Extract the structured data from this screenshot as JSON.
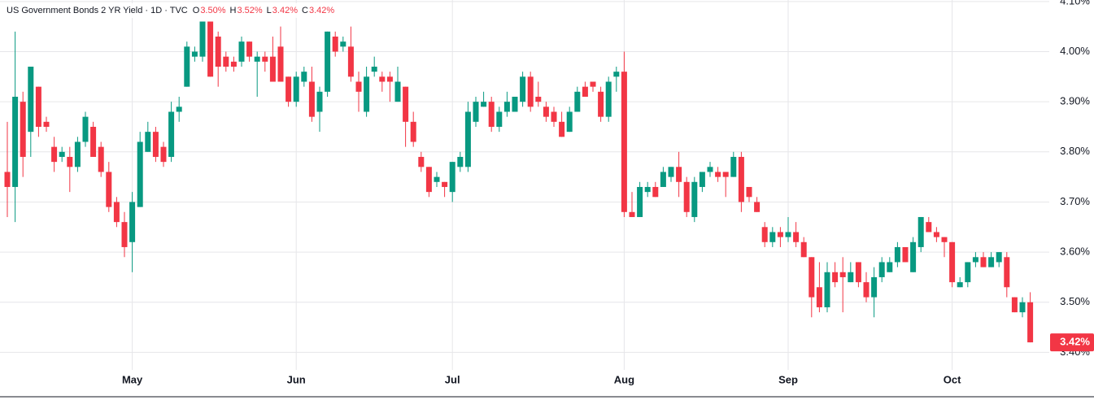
{
  "chart_data": {
    "type": "candlestick",
    "title": "US Government Bonds 2 YR Yield · 1D · TVC",
    "legend": {
      "names": [
        "O",
        "H",
        "L",
        "C"
      ],
      "value_labels": [
        "3.50%",
        "3.52%",
        "3.42%",
        "3.42%"
      ]
    },
    "last_price_label": "3.42%",
    "categories": [
      null,
      null,
      null,
      null,
      null,
      null,
      null,
      null,
      null,
      null,
      null,
      null,
      null,
      null,
      null,
      null,
      "May",
      null,
      null,
      null,
      null,
      null,
      null,
      null,
      null,
      null,
      null,
      null,
      null,
      null,
      null,
      null,
      null,
      null,
      null,
      null,
      null,
      "Jun",
      null,
      null,
      null,
      null,
      null,
      null,
      null,
      null,
      null,
      null,
      null,
      null,
      null,
      null,
      null,
      null,
      null,
      null,
      null,
      "Jul",
      null,
      null,
      null,
      null,
      null,
      null,
      null,
      null,
      null,
      null,
      null,
      null,
      null,
      null,
      null,
      null,
      null,
      null,
      null,
      null,
      null,
      "Aug",
      null,
      null,
      null,
      null,
      null,
      null,
      null,
      null,
      null,
      null,
      null,
      null,
      null,
      null,
      null,
      null,
      null,
      null,
      null,
      null,
      "Sep",
      null,
      null,
      null,
      null,
      null,
      null,
      null,
      null,
      null,
      null,
      null,
      null,
      null,
      null,
      null,
      null,
      null,
      null,
      null,
      null,
      "Oct",
      null,
      null,
      null,
      null,
      null,
      null,
      null,
      null,
      null,
      null
    ],
    "series": {
      "up_color": "#089981",
      "down_color": "#f23645",
      "open": [
        3.76,
        3.73,
        3.9,
        3.84,
        3.93,
        3.86,
        3.81,
        3.79,
        3.79,
        3.77,
        3.82,
        3.85,
        3.81,
        3.76,
        3.7,
        3.66,
        3.62,
        3.69,
        3.8,
        3.84,
        3.81,
        3.79,
        3.88,
        3.93,
        3.99,
        3.99,
        4.06,
        4.03,
        3.99,
        3.98,
        3.98,
        4.02,
        3.98,
        3.99,
        3.99,
        4.01,
        3.95,
        3.9,
        3.94,
        3.94,
        3.88,
        3.92,
        4.03,
        4.01,
        4.01,
        3.94,
        3.88,
        3.96,
        3.95,
        3.95,
        3.9,
        3.93,
        3.86,
        3.79,
        3.77,
        3.74,
        3.74,
        3.72,
        3.77,
        3.77,
        3.86,
        3.89,
        3.9,
        3.85,
        3.88,
        3.88,
        3.9,
        3.95,
        3.91,
        3.89,
        3.88,
        3.86,
        3.84,
        3.88,
        3.93,
        3.94,
        3.92,
        3.87,
        3.95,
        3.96,
        3.68,
        3.67,
        3.72,
        3.73,
        3.73,
        3.75,
        3.77,
        3.74,
        3.67,
        3.73,
        3.76,
        3.76,
        3.76,
        3.75,
        3.79,
        3.73,
        3.7,
        3.65,
        3.62,
        3.64,
        3.63,
        3.64,
        3.62,
        3.59,
        3.53,
        3.49,
        3.56,
        3.56,
        3.54,
        3.58,
        3.54,
        3.51,
        3.55,
        3.56,
        3.58,
        3.61,
        3.56,
        3.61,
        3.66,
        3.64,
        3.63,
        3.62,
        3.53,
        3.54,
        3.58,
        3.59,
        3.57,
        3.58,
        3.59,
        3.51,
        3.48,
        3.5
      ],
      "high": [
        3.86,
        4.04,
        3.92,
        3.97,
        3.93,
        3.87,
        3.83,
        3.81,
        3.81,
        3.83,
        3.88,
        3.86,
        3.82,
        3.78,
        3.71,
        3.68,
        3.72,
        3.84,
        3.86,
        3.85,
        3.82,
        3.9,
        3.91,
        4.02,
        4.01,
        4.06,
        4.06,
        4.04,
        4.0,
        3.99,
        4.03,
        4.02,
        4.0,
        4.0,
        4.03,
        4.05,
        3.95,
        3.96,
        3.97,
        3.97,
        3.93,
        4.04,
        4.04,
        4.03,
        4.05,
        3.96,
        3.97,
        3.99,
        3.96,
        3.96,
        3.97,
        3.93,
        3.88,
        3.8,
        3.77,
        3.76,
        3.74,
        3.78,
        3.8,
        3.9,
        3.91,
        3.92,
        3.91,
        3.89,
        3.92,
        3.91,
        3.96,
        3.96,
        3.94,
        3.9,
        3.89,
        3.88,
        3.89,
        3.93,
        3.94,
        3.94,
        3.93,
        3.95,
        3.97,
        4.0,
        3.72,
        3.74,
        3.74,
        3.74,
        3.77,
        3.77,
        3.8,
        3.75,
        3.75,
        3.76,
        3.78,
        3.77,
        3.76,
        3.8,
        3.8,
        3.73,
        3.71,
        3.66,
        3.65,
        3.65,
        3.67,
        3.66,
        3.63,
        3.59,
        3.58,
        3.58,
        3.58,
        3.59,
        3.58,
        3.58,
        3.56,
        3.57,
        3.59,
        3.59,
        3.62,
        3.61,
        3.63,
        3.67,
        3.67,
        3.65,
        3.63,
        3.62,
        3.55,
        3.58,
        3.6,
        3.6,
        3.6,
        3.6,
        3.6,
        3.51,
        3.51,
        3.52
      ],
      "low": [
        3.67,
        3.66,
        3.75,
        3.79,
        3.83,
        3.84,
        3.76,
        3.78,
        3.72,
        3.76,
        3.81,
        3.79,
        3.75,
        3.68,
        3.65,
        3.59,
        3.56,
        3.69,
        3.8,
        3.78,
        3.77,
        3.78,
        3.86,
        3.93,
        3.98,
        3.98,
        3.95,
        3.93,
        3.96,
        3.96,
        3.97,
        3.98,
        3.91,
        3.96,
        3.94,
        3.94,
        3.89,
        3.89,
        3.93,
        3.86,
        3.84,
        3.91,
        3.99,
        4.0,
        3.94,
        3.88,
        3.87,
        3.95,
        3.92,
        3.9,
        3.9,
        3.81,
        3.81,
        3.76,
        3.71,
        3.73,
        3.71,
        3.7,
        3.76,
        3.76,
        3.85,
        3.89,
        3.84,
        3.84,
        3.87,
        3.88,
        3.89,
        3.88,
        3.89,
        3.86,
        3.85,
        3.83,
        3.84,
        3.88,
        3.91,
        3.92,
        3.86,
        3.86,
        3.92,
        3.67,
        3.67,
        3.67,
        3.71,
        3.71,
        3.73,
        3.74,
        3.71,
        3.67,
        3.66,
        3.72,
        3.75,
        3.74,
        3.71,
        3.75,
        3.68,
        3.7,
        3.68,
        3.61,
        3.61,
        3.61,
        3.62,
        3.61,
        3.59,
        3.47,
        3.48,
        3.48,
        3.53,
        3.48,
        3.54,
        3.53,
        3.5,
        3.47,
        3.54,
        3.56,
        3.57,
        3.58,
        3.56,
        3.6,
        3.64,
        3.62,
        3.59,
        3.53,
        3.53,
        3.53,
        3.57,
        3.57,
        3.57,
        3.57,
        3.51,
        3.48,
        3.47,
        3.42
      ],
      "close": [
        3.73,
        3.91,
        3.79,
        3.97,
        3.85,
        3.85,
        3.78,
        3.8,
        3.77,
        3.82,
        3.87,
        3.79,
        3.76,
        3.69,
        3.66,
        3.61,
        3.7,
        3.82,
        3.84,
        3.79,
        3.78,
        3.88,
        3.89,
        4.01,
        4.0,
        4.06,
        3.95,
        3.97,
        3.97,
        3.97,
        4.02,
        3.99,
        3.99,
        3.98,
        3.94,
        3.94,
        3.9,
        3.95,
        3.96,
        3.87,
        3.92,
        4.04,
        4.0,
        4.02,
        3.95,
        3.92,
        3.95,
        3.97,
        3.94,
        3.94,
        3.94,
        3.86,
        3.82,
        3.77,
        3.72,
        3.75,
        3.73,
        3.78,
        3.79,
        3.88,
        3.9,
        3.9,
        3.85,
        3.88,
        3.9,
        3.91,
        3.95,
        3.89,
        3.9,
        3.87,
        3.86,
        3.83,
        3.88,
        3.92,
        3.91,
        3.93,
        3.87,
        3.94,
        3.96,
        3.68,
        3.67,
        3.73,
        3.73,
        3.71,
        3.76,
        3.77,
        3.74,
        3.68,
        3.74,
        3.76,
        3.77,
        3.75,
        3.75,
        3.79,
        3.7,
        3.71,
        3.68,
        3.62,
        3.64,
        3.63,
        3.64,
        3.62,
        3.59,
        3.51,
        3.49,
        3.56,
        3.54,
        3.55,
        3.56,
        3.54,
        3.51,
        3.55,
        3.58,
        3.58,
        3.61,
        3.58,
        3.62,
        3.67,
        3.64,
        3.63,
        3.62,
        3.54,
        3.54,
        3.58,
        3.59,
        3.57,
        3.59,
        3.6,
        3.53,
        3.48,
        3.5,
        3.42
      ]
    },
    "ylim": [
      3.365,
      4.103
    ],
    "yticks": [
      {
        "value": 3.4,
        "label": "3.40%"
      },
      {
        "value": 3.5,
        "label": "3.50%"
      },
      {
        "value": 3.6,
        "label": "3.60%"
      },
      {
        "value": 3.7,
        "label": "3.70%"
      },
      {
        "value": 3.8,
        "label": "3.80%"
      },
      {
        "value": 3.9,
        "label": "3.90%"
      },
      {
        "value": 4.0,
        "label": "4.00%"
      },
      {
        "value": 4.1,
        "label": "4.10%"
      }
    ],
    "grid": true
  }
}
